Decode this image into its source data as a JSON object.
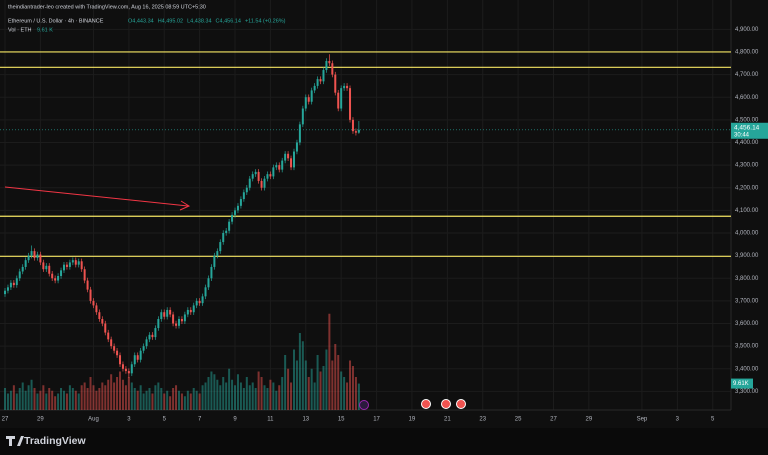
{
  "chart_data": {
    "type": "candlestick",
    "attribution": "theindiantrader-leo created with TradingView.com, Aug 16, 2025 08:59 UTC+5:30",
    "symbol": "Ethereum / U.S. Dollar · 4h · BINANCE",
    "legend_ohlc": [
      "O4,443.34",
      "H4,495.02",
      "L4,438.34",
      "C4,456.14",
      "+11.54 (+0.26%)"
    ],
    "volume_legend": "Vol · ETH",
    "volume_legend_value": "9.61 K",
    "brand": "TradingView",
    "up_color": "#26a69a",
    "down_color": "#ef5350",
    "hline_color": "#f5e663",
    "arrow_color": "#f23645",
    "grid": true,
    "ylim": [
      3240,
      4950
    ],
    "yticks": [
      {
        "value": 4900,
        "label": "4,900.00"
      },
      {
        "value": 4800,
        "label": "4,800.00"
      },
      {
        "value": 4700,
        "label": "4,700.00"
      },
      {
        "value": 4600,
        "label": "4,600.00"
      },
      {
        "value": 4500,
        "label": "4,500.00"
      },
      {
        "value": 4400,
        "label": "4,400.00"
      },
      {
        "value": 4300,
        "label": "4,300.00"
      },
      {
        "value": 4200,
        "label": "4,200.00"
      },
      {
        "value": 4100,
        "label": "4,100.00"
      },
      {
        "value": 4000,
        "label": "4,000.00"
      },
      {
        "value": 3900,
        "label": "3,900.00"
      },
      {
        "value": 3800,
        "label": "3,800.00"
      },
      {
        "value": 3700,
        "label": "3,700.00"
      },
      {
        "value": 3600,
        "label": "3,600.00"
      },
      {
        "value": 3500,
        "label": "3,500.00"
      },
      {
        "value": 3400,
        "label": "3,400.00"
      },
      {
        "value": 3300,
        "label": "3,300.00"
      }
    ],
    "xlim": [
      -1.7,
      246.2
    ],
    "xticks": [
      {
        "value": 0,
        "label": "27"
      },
      {
        "value": 12,
        "label": "29"
      },
      {
        "value": 30,
        "label": "Aug"
      },
      {
        "value": 42,
        "label": "3"
      },
      {
        "value": 54,
        "label": "5"
      },
      {
        "value": 66,
        "label": "7"
      },
      {
        "value": 78,
        "label": "9"
      },
      {
        "value": 90,
        "label": "11"
      },
      {
        "value": 102,
        "label": "13"
      },
      {
        "value": 114,
        "label": "15"
      },
      {
        "value": 126,
        "label": "17"
      },
      {
        "value": 138,
        "label": "19"
      },
      {
        "value": 150,
        "label": "21"
      },
      {
        "value": 162,
        "label": "23"
      },
      {
        "value": 174,
        "label": "25"
      },
      {
        "value": 186,
        "label": "27"
      },
      {
        "value": 198,
        "label": "29"
      },
      {
        "value": 216,
        "label": "Sep"
      },
      {
        "value": 228,
        "label": "3"
      },
      {
        "value": 240,
        "label": "5"
      }
    ],
    "hlines": [
      4800,
      4732,
      4074,
      3897
    ],
    "last_price": {
      "value": 4456.14,
      "label": "4,456.14"
    },
    "countdown": "30:44",
    "volume_ylim": [
      0,
      40
    ],
    "volume_label": {
      "value": 9.61,
      "label": "9.61K"
    },
    "open": [
      3730,
      3745,
      3760,
      3780,
      3770,
      3800,
      3830,
      3850,
      3880,
      3900,
      3920,
      3890,
      3905,
      3870,
      3840,
      3855,
      3820,
      3800,
      3790,
      3810,
      3835,
      3860,
      3850,
      3870,
      3880,
      3860,
      3875,
      3840,
      3790,
      3750,
      3700,
      3680,
      3650,
      3620,
      3600,
      3560,
      3530,
      3500,
      3480,
      3460,
      3420,
      3400,
      3390,
      3380,
      3420,
      3460,
      3440,
      3480,
      3500,
      3530,
      3550,
      3540,
      3580,
      3620,
      3650,
      3630,
      3660,
      3640,
      3600,
      3590,
      3620,
      3610,
      3640,
      3660,
      3650,
      3680,
      3700,
      3690,
      3720,
      3760,
      3800,
      3850,
      3900,
      3920,
      3960,
      4000,
      4010,
      4050,
      4080,
      4100,
      4120,
      4150,
      4180,
      4200,
      4240,
      4260,
      4270,
      4230,
      4200,
      4240,
      4260,
      4250,
      4290,
      4300,
      4280,
      4320,
      4350,
      4330,
      4290,
      4360,
      4400,
      4480,
      4550,
      4600,
      4580,
      4630,
      4650,
      4680,
      4670,
      4720,
      4760,
      4750,
      4700,
      4620,
      4550,
      4640,
      4650,
      4640,
      4500,
      4450,
      4443.34
    ],
    "high": [
      3757,
      3772,
      3792,
      3792,
      3812,
      3842,
      3862,
      3892,
      3912,
      3945,
      3932,
      3917,
      3917,
      3882,
      3867,
      3867,
      3832,
      3812,
      3822,
      3847,
      3872,
      3872,
      3882,
      3892,
      3892,
      3887,
      3887,
      3852,
      3802,
      3762,
      3712,
      3692,
      3662,
      3632,
      3612,
      3572,
      3542,
      3512,
      3492,
      3472,
      3432,
      3412,
      3402,
      3432,
      3472,
      3472,
      3492,
      3512,
      3542,
      3562,
      3562,
      3592,
      3632,
      3662,
      3662,
      3672,
      3672,
      3652,
      3612,
      3632,
      3632,
      3652,
      3672,
      3672,
      3692,
      3712,
      3712,
      3732,
      3772,
      3812,
      3862,
      3912,
      3932,
      3972,
      4012,
      4022,
      4062,
      4092,
      4112,
      4132,
      4162,
      4192,
      4212,
      4252,
      4272,
      4282,
      4282,
      4242,
      4252,
      4272,
      4272,
      4302,
      4312,
      4312,
      4332,
      4362,
      4362,
      4342,
      4372,
      4412,
      4492,
      4562,
      4612,
      4612,
      4642,
      4662,
      4692,
      4692,
      4732,
      4772,
      4790,
      4762,
      4712,
      4632,
      4652,
      4662,
      4662,
      4652,
      4512,
      4462,
      4495.02
    ],
    "low": [
      3718,
      3733,
      3748,
      3758,
      3758,
      3788,
      3818,
      3838,
      3868,
      3888,
      3878,
      3878,
      3858,
      3828,
      3828,
      3808,
      3788,
      3778,
      3778,
      3798,
      3823,
      3838,
      3838,
      3858,
      3848,
      3848,
      3828,
      3778,
      3738,
      3688,
      3668,
      3638,
      3608,
      3588,
      3548,
      3518,
      3488,
      3468,
      3448,
      3408,
      3388,
      3378,
      3360,
      3368,
      3408,
      3428,
      3428,
      3468,
      3488,
      3518,
      3528,
      3528,
      3568,
      3608,
      3618,
      3618,
      3628,
      3588,
      3578,
      3578,
      3598,
      3598,
      3628,
      3638,
      3638,
      3668,
      3678,
      3678,
      3708,
      3748,
      3788,
      3838,
      3888,
      3908,
      3948,
      3988,
      3998,
      4038,
      4068,
      4088,
      4108,
      4138,
      4168,
      4188,
      4228,
      4248,
      4218,
      4188,
      4188,
      4228,
      4238,
      4238,
      4278,
      4268,
      4268,
      4308,
      4318,
      4278,
      4278,
      4348,
      4388,
      4468,
      4538,
      4568,
      4568,
      4618,
      4638,
      4658,
      4658,
      4708,
      4738,
      4688,
      4608,
      4538,
      4538,
      4628,
      4628,
      4488,
      4438,
      4431,
      4438.34
    ],
    "close": [
      3745,
      3760,
      3780,
      3770,
      3800,
      3830,
      3850,
      3880,
      3900,
      3920,
      3890,
      3905,
      3870,
      3840,
      3855,
      3820,
      3800,
      3790,
      3810,
      3835,
      3860,
      3850,
      3870,
      3880,
      3860,
      3875,
      3840,
      3790,
      3750,
      3700,
      3680,
      3650,
      3620,
      3600,
      3560,
      3530,
      3500,
      3480,
      3460,
      3420,
      3400,
      3390,
      3380,
      3420,
      3460,
      3440,
      3480,
      3500,
      3530,
      3550,
      3540,
      3580,
      3620,
      3650,
      3630,
      3660,
      3640,
      3600,
      3590,
      3620,
      3610,
      3640,
      3660,
      3650,
      3680,
      3700,
      3690,
      3720,
      3760,
      3800,
      3850,
      3900,
      3920,
      3960,
      4000,
      4010,
      4050,
      4080,
      4100,
      4120,
      4150,
      4180,
      4200,
      4240,
      4260,
      4270,
      4230,
      4200,
      4240,
      4260,
      4250,
      4290,
      4300,
      4280,
      4320,
      4350,
      4330,
      4290,
      4360,
      4400,
      4480,
      4550,
      4600,
      4580,
      4630,
      4650,
      4680,
      4670,
      4720,
      4760,
      4750,
      4700,
      4620,
      4550,
      4640,
      4650,
      4640,
      4500,
      4450,
      4443.34,
      4456.14
    ],
    "volume": [
      8,
      6,
      7,
      9,
      6,
      8,
      10,
      7,
      9,
      11,
      8,
      6,
      7,
      9,
      6,
      8,
      7,
      5,
      6,
      8,
      7,
      6,
      9,
      8,
      7,
      6,
      9,
      10,
      8,
      12,
      9,
      7,
      8,
      10,
      9,
      11,
      13,
      10,
      12,
      14,
      11,
      9,
      12,
      10,
      8,
      7,
      9,
      6,
      7,
      8,
      6,
      9,
      10,
      8,
      6,
      7,
      5,
      8,
      9,
      7,
      6,
      5,
      7,
      6,
      8,
      7,
      6,
      9,
      10,
      12,
      14,
      13,
      11,
      9,
      12,
      10,
      15,
      11,
      9,
      13,
      10,
      8,
      12,
      9,
      10,
      8,
      14,
      12,
      9,
      8,
      11,
      10,
      7,
      9,
      12,
      20,
      15,
      10,
      22,
      18,
      28,
      25,
      18,
      12,
      15,
      10,
      20,
      14,
      16,
      22,
      35,
      18,
      24,
      20,
      14,
      12,
      10,
      18,
      16,
      12,
      9.61
    ]
  }
}
